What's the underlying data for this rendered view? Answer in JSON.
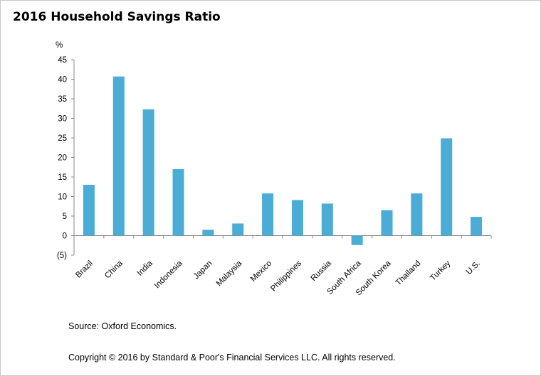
{
  "title": "2016 Household Savings Ratio",
  "source": "Source: Oxford Economics.",
  "copyright": "Copyright © 2016 by Standard & Poor's Financial Services LLC. All rights reserved.",
  "chart_data": {
    "type": "bar",
    "title": "2016 Household Savings Ratio",
    "ylabel": "%",
    "xlabel": "",
    "ylim": [
      -5,
      45
    ],
    "yticks": [
      -5,
      0,
      5,
      10,
      15,
      20,
      25,
      30,
      35,
      40,
      45
    ],
    "ytick_labels": [
      "(5)",
      "0",
      "5",
      "10",
      "15",
      "20",
      "25",
      "30",
      "35",
      "40",
      "45"
    ],
    "grid": false,
    "bar_color": "#4bacd6",
    "categories": [
      "Brazil",
      "China",
      "India",
      "Indonesia",
      "Japan",
      "Malaysia",
      "Mexico",
      "Philippines",
      "Russia",
      "South Africa",
      "South Korea",
      "Thailand",
      "Turkey",
      "U.S."
    ],
    "values": [
      13.0,
      40.7,
      32.3,
      17.0,
      1.5,
      3.1,
      10.8,
      9.1,
      8.2,
      -2.4,
      6.5,
      10.8,
      24.9,
      4.8
    ]
  }
}
